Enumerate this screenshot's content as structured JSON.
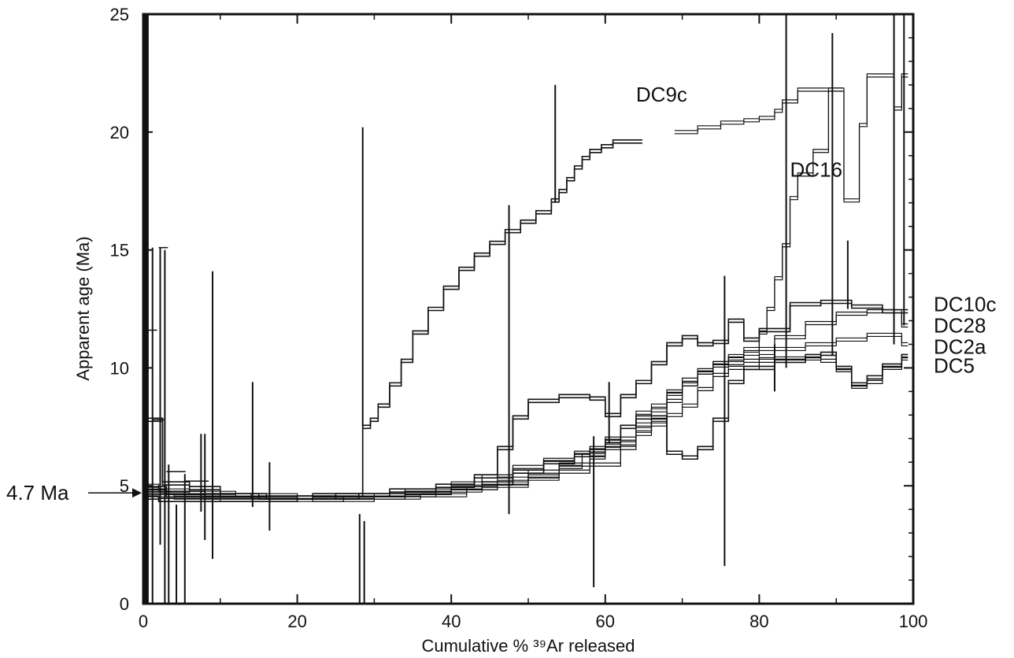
{
  "chart_data": {
    "type": "line",
    "xlabel": "Cumulative % ³⁹Ar released",
    "ylabel": "Apparent age (Ma)",
    "xlim": [
      0,
      100
    ],
    "ylim": [
      0,
      25
    ],
    "xticks": [
      0,
      20,
      40,
      60,
      80,
      100
    ],
    "yticks": [
      0,
      5,
      10,
      15,
      20,
      25
    ],
    "grid": false,
    "annotations": [
      {
        "text": "4.7 Ma",
        "x": 0,
        "y": 4.7,
        "style": "arrow"
      },
      {
        "text": "DC9c",
        "x": 64,
        "y": 21.3
      },
      {
        "text": "DC16",
        "x": 84,
        "y": 18.1
      }
    ],
    "series_labels": [
      {
        "text": "DC10c",
        "y": 12.7
      },
      {
        "text": "DC28",
        "y": 11.8
      },
      {
        "text": "DC2a",
        "y": 10.9
      },
      {
        "text": "DC5",
        "y": 10.1
      }
    ],
    "series": [
      {
        "steps": [
          [
            0,
            7.8
          ],
          [
            2.5,
            5.1
          ],
          [
            6,
            4.9
          ],
          [
            10,
            4.6
          ],
          [
            16,
            4.5
          ],
          [
            22,
            4.6
          ],
          [
            27,
            4.6
          ],
          [
            28.5,
            7.5
          ],
          [
            29.5,
            7.8
          ],
          [
            30.5,
            8.4
          ],
          [
            32,
            9.3
          ],
          [
            33.5,
            10.3
          ],
          [
            35,
            11.5
          ],
          [
            37,
            12.5
          ],
          [
            39,
            13.4
          ],
          [
            41,
            14.2
          ],
          [
            43,
            14.8
          ],
          [
            45,
            15.3
          ],
          [
            47,
            15.8
          ],
          [
            49,
            16.2
          ],
          [
            51,
            16.6
          ],
          [
            53,
            17.1
          ],
          [
            54,
            17.5
          ],
          [
            55,
            18.0
          ],
          [
            56,
            18.5
          ],
          [
            57,
            18.9
          ],
          [
            58,
            19.2
          ],
          [
            59.5,
            19.4
          ],
          [
            61,
            19.6
          ],
          [
            64,
            19.6
          ]
        ],
        "spikes": [
          [
            28.5,
            20.2,
            7.5
          ],
          [
            53.5,
            22.0,
            17.0
          ]
        ]
      },
      {
        "steps": [
          [
            69,
            20.0
          ],
          [
            72,
            20.2
          ],
          [
            75,
            20.4
          ],
          [
            78,
            20.5
          ],
          [
            80,
            20.6
          ],
          [
            82,
            20.9
          ],
          [
            83,
            21.3
          ],
          [
            85,
            21.8
          ],
          [
            91,
            17.1
          ],
          [
            93,
            20.3
          ],
          [
            94,
            22.4
          ],
          [
            97.5,
            21.0
          ],
          [
            98.5,
            22.4
          ]
        ],
        "spikes": []
      },
      {
        "steps": [
          [
            0,
            5.0
          ],
          [
            2,
            4.8
          ],
          [
            6,
            4.7
          ],
          [
            12,
            4.6
          ],
          [
            20,
            4.5
          ],
          [
            28,
            4.6
          ],
          [
            34,
            4.8
          ],
          [
            40,
            5.1
          ],
          [
            44,
            5.4
          ],
          [
            48,
            5.8
          ],
          [
            52,
            6.1
          ],
          [
            56,
            6.4
          ],
          [
            58,
            6.6
          ],
          [
            60,
            6.7
          ],
          [
            62,
            7.0
          ],
          [
            64,
            7.6
          ],
          [
            66,
            8.2
          ],
          [
            68,
            8.9
          ],
          [
            70,
            9.3
          ],
          [
            72,
            9.8
          ],
          [
            74,
            10.1
          ],
          [
            76,
            10.4
          ],
          [
            78,
            10.6
          ],
          [
            80,
            11.5
          ],
          [
            81,
            12.5
          ],
          [
            82,
            13.8
          ],
          [
            83,
            15.2
          ],
          [
            84,
            17.2
          ],
          [
            85,
            18.2
          ],
          [
            87,
            19.2
          ],
          [
            89,
            21.8
          ],
          [
            90,
            21.8
          ]
        ],
        "spikes": [
          [
            83.5,
            25,
            10.0
          ],
          [
            89.5,
            24.2,
            10.5
          ]
        ]
      },
      {
        "steps": [
          [
            0,
            4.9
          ],
          [
            3,
            4.7
          ],
          [
            8,
            4.6
          ],
          [
            15,
            4.5
          ],
          [
            25,
            4.6
          ],
          [
            32,
            4.8
          ],
          [
            38,
            5.0
          ],
          [
            43,
            5.4
          ],
          [
            46,
            6.6
          ],
          [
            48,
            7.9
          ],
          [
            50,
            8.6
          ],
          [
            54,
            8.8
          ],
          [
            58,
            8.7
          ],
          [
            60,
            8.0
          ],
          [
            62,
            8.8
          ],
          [
            64,
            9.4
          ],
          [
            66,
            10.2
          ],
          [
            68,
            11.0
          ],
          [
            70,
            11.3
          ],
          [
            72,
            11.0
          ],
          [
            74,
            11.1
          ],
          [
            76,
            12.0
          ],
          [
            78,
            11.2
          ],
          [
            80,
            11.6
          ],
          [
            84,
            12.7
          ],
          [
            88,
            12.8
          ],
          [
            92,
            12.6
          ],
          [
            96,
            12.4
          ],
          [
            98.5,
            12.4
          ]
        ],
        "spikes": [
          [
            60.5,
            9.4,
            6.8
          ]
        ]
      },
      {
        "steps": [
          [
            0,
            4.6
          ],
          [
            4,
            4.5
          ],
          [
            10,
            4.4
          ],
          [
            18,
            4.4
          ],
          [
            26,
            4.5
          ],
          [
            34,
            4.7
          ],
          [
            40,
            4.9
          ],
          [
            46,
            5.1
          ],
          [
            50,
            5.4
          ],
          [
            54,
            5.8
          ],
          [
            57,
            6.3
          ],
          [
            60,
            7.0
          ],
          [
            62,
            7.5
          ],
          [
            64,
            8.1
          ],
          [
            66,
            8.4
          ],
          [
            68,
            9.0
          ],
          [
            70,
            9.5
          ],
          [
            72,
            9.9
          ],
          [
            74,
            10.2
          ],
          [
            76,
            10.5
          ],
          [
            78,
            10.8
          ],
          [
            82,
            11.3
          ],
          [
            86,
            11.9
          ],
          [
            90,
            12.3
          ],
          [
            94,
            12.4
          ],
          [
            98.5,
            11.8
          ]
        ],
        "spikes": []
      },
      {
        "steps": [
          [
            0,
            4.7
          ],
          [
            3,
            4.6
          ],
          [
            8,
            4.5
          ],
          [
            14,
            4.5
          ],
          [
            22,
            4.4
          ],
          [
            30,
            4.5
          ],
          [
            36,
            4.6
          ],
          [
            42,
            4.9
          ],
          [
            46,
            5.3
          ],
          [
            50,
            5.6
          ],
          [
            54,
            5.9
          ],
          [
            58,
            6.2
          ],
          [
            60,
            6.6
          ],
          [
            62,
            6.8
          ],
          [
            64,
            7.4
          ],
          [
            66,
            7.6
          ],
          [
            68,
            8.0
          ],
          [
            70,
            8.4
          ],
          [
            72,
            9.1
          ],
          [
            74,
            9.7
          ],
          [
            76,
            10.0
          ],
          [
            80,
            10.5
          ],
          [
            82,
            10.8
          ],
          [
            86,
            11.0
          ],
          [
            90,
            11.2
          ],
          [
            94,
            11.4
          ],
          [
            98.5,
            11.0
          ]
        ],
        "spikes": [
          [
            75.5,
            13.9,
            1.6
          ]
        ]
      },
      {
        "steps": [
          [
            0,
            4.5
          ],
          [
            2,
            4.4
          ],
          [
            6,
            4.4
          ],
          [
            12,
            4.4
          ],
          [
            20,
            4.5
          ],
          [
            28,
            4.6
          ],
          [
            34,
            4.7
          ],
          [
            40,
            4.9
          ],
          [
            44,
            5.1
          ],
          [
            48,
            5.6
          ],
          [
            52,
            6.0
          ],
          [
            56,
            6.3
          ],
          [
            58,
            6.5
          ],
          [
            60,
            6.9
          ],
          [
            62,
            7.5
          ],
          [
            64,
            7.9
          ],
          [
            68,
            6.4
          ],
          [
            70,
            6.2
          ],
          [
            72,
            6.6
          ],
          [
            74,
            7.8
          ],
          [
            76,
            9.4
          ],
          [
            78,
            10.0
          ],
          [
            82,
            10.3
          ],
          [
            86,
            10.5
          ],
          [
            88,
            10.6
          ],
          [
            90,
            10.0
          ],
          [
            92,
            9.3
          ],
          [
            94,
            9.6
          ],
          [
            96,
            10.1
          ],
          [
            98.5,
            10.5
          ]
        ],
        "spikes": [
          [
            47.5,
            16.9,
            3.8
          ],
          [
            58.5,
            7.1,
            0.7
          ]
        ]
      },
      {
        "steps": [
          [
            0,
            4.8
          ],
          [
            3,
            4.6
          ],
          [
            8,
            4.6
          ],
          [
            14,
            4.5
          ],
          [
            22,
            4.5
          ],
          [
            30,
            4.6
          ],
          [
            38,
            4.8
          ],
          [
            44,
            5.0
          ],
          [
            50,
            5.3
          ],
          [
            54,
            5.6
          ],
          [
            58,
            5.9
          ],
          [
            62,
            6.6
          ],
          [
            64,
            7.2
          ],
          [
            66,
            7.8
          ],
          [
            68,
            8.6
          ],
          [
            70,
            9.3
          ],
          [
            72,
            9.8
          ],
          [
            74,
            10.2
          ],
          [
            78,
            10.3
          ],
          [
            82,
            10.4
          ],
          [
            86,
            10.4
          ],
          [
            88,
            10.3
          ],
          [
            90,
            9.9
          ],
          [
            92,
            9.2
          ],
          [
            94,
            9.4
          ],
          [
            96,
            10.0
          ],
          [
            98.5,
            10.4
          ]
        ],
        "spikes": [
          [
            82,
            11.0,
            9.0
          ],
          [
            91.5,
            15.4,
            12.5
          ]
        ]
      }
    ],
    "low_step_spikes": [
      [
        0.6,
        25,
        0
      ],
      [
        1.2,
        15.1,
        0
      ],
      [
        2.2,
        15.1,
        2.5
      ],
      [
        2.8,
        15.0,
        0
      ],
      [
        3.3,
        5.9,
        0
      ],
      [
        4.3,
        4.2,
        0
      ],
      [
        5.4,
        5.5,
        0
      ],
      [
        7.5,
        7.2,
        3.9
      ],
      [
        8.0,
        7.2,
        2.7
      ],
      [
        9.0,
        14.1,
        1.9
      ],
      [
        14.2,
        9.4,
        4.1
      ],
      [
        16.4,
        6.0,
        3.1
      ],
      [
        28.1,
        3.8,
        0
      ],
      [
        28.7,
        3.5,
        0
      ],
      [
        97.5,
        25,
        11.0
      ],
      [
        98.8,
        25,
        11.8
      ]
    ]
  }
}
